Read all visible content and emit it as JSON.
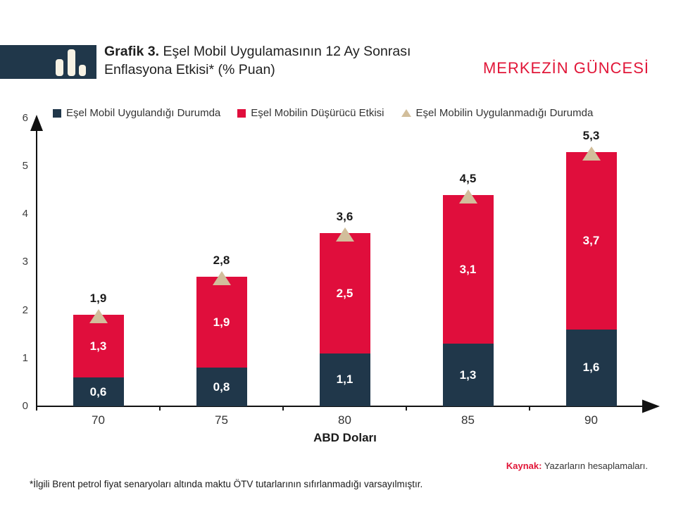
{
  "header": {
    "logo_icon": "bar-chart-icon",
    "title_prefix": "Grafik 3.",
    "title_rest": " Eşel Mobil Uygulamasının 12 Ay Sonrası Enflasyona Etkisi* (% Puan)",
    "brand": "MERKEZİN GÜNCESİ"
  },
  "legend": [
    {
      "label": "Eşel Mobil Uygulandığı Durumda",
      "marker": "square",
      "color": "#20374A"
    },
    {
      "label": "Eşel Mobilin Düşürücü Etkisi",
      "marker": "square",
      "color": "#E00E3C"
    },
    {
      "label": "Eşel Mobilin Uygulanmadığı Durumda",
      "marker": "triangle",
      "color": "#D2BE9B"
    }
  ],
  "chart_data": {
    "type": "bar",
    "stacked": true,
    "title": "Grafik 3. Eşel Mobil Uygulamasının 12 Ay Sonrası Enflasyona Etkisi* (% Puan)",
    "categories": [
      "70",
      "75",
      "80",
      "85",
      "90"
    ],
    "series": [
      {
        "name": "Eşel Mobil Uygulandığı Durumda",
        "color": "#20374A",
        "values": [
          0.6,
          0.8,
          1.1,
          1.3,
          1.6
        ]
      },
      {
        "name": "Eşel Mobilin Düşürücü Etkisi",
        "color": "#E00E3C",
        "values": [
          1.3,
          1.9,
          2.5,
          3.1,
          3.7
        ]
      }
    ],
    "totals": {
      "name": "Eşel Mobilin Uygulanmadığı Durumda",
      "marker": "triangle",
      "color": "#D2BE9B",
      "values": [
        1.9,
        2.8,
        3.6,
        4.5,
        5.3
      ]
    },
    "xlabel": "ABD Doları",
    "ylabel": "",
    "ylim": [
      0,
      6
    ],
    "y_ticks": [
      0,
      1,
      2,
      3,
      4,
      5,
      6
    ],
    "grid": false,
    "legend_position": "top",
    "number_format": "comma-decimal"
  },
  "footer": {
    "source_label": "Kaynak:",
    "source_text": " Yazarların hesaplamaları.",
    "footnote": "*İlgili Brent petrol fiyat senaryoları altında maktu ÖTV tutarlarının sıfırlanmadığı varsayılmıştır."
  },
  "colors": {
    "navy": "#20374A",
    "red": "#E00E3C",
    "tan": "#D2BE9B",
    "brand_red": "#E11638",
    "axis": "#111111",
    "logo_bar_fill": "#F7F2E4"
  }
}
